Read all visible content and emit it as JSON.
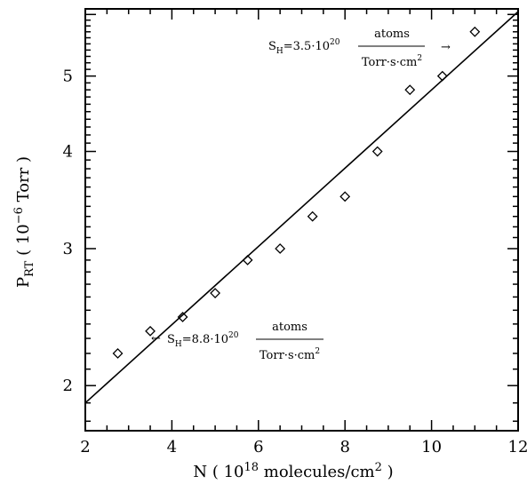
{
  "chart_data": {
    "type": "scatter",
    "xlabel": "N ( 10¹⁸ molecules/cm² )",
    "ylabel": "P_RT ( 10⁻⁶ Torr )",
    "xlim": [
      2,
      12
    ],
    "ylim": [
      1.75,
      6.1
    ],
    "yscale": "log",
    "xticks": [
      2,
      4,
      6,
      8,
      10,
      12
    ],
    "yticks": [
      2,
      3,
      4,
      5
    ],
    "grid": false,
    "series": [
      {
        "type": "scatter",
        "marker": "diamond",
        "x": [
          2.75,
          3.5,
          4.25,
          5.0,
          5.75,
          6.5,
          7.25,
          8.0,
          8.75,
          9.5,
          10.25,
          11.0
        ],
        "y": [
          2.2,
          2.35,
          2.45,
          2.63,
          2.9,
          3.0,
          3.3,
          3.5,
          4.0,
          4.8,
          5.0,
          5.7
        ]
      },
      {
        "type": "line",
        "x": [
          2,
          12
        ],
        "y": [
          1.9,
          6.05
        ]
      }
    ],
    "annotations": [
      {
        "text": "S_H=3.5·10^20 atoms/(Torr·s·cm²)",
        "prefix": "S",
        "sub": "H",
        "mid": "=3.5·10",
        "sup": "20",
        "numerator": "atoms",
        "denominator": "Torr·s·cm",
        "denominator_sup": "2",
        "arrow": "→"
      },
      {
        "text": "S_H=8.8·10^20 atoms/(Torr·s·cm²)",
        "prefix": "S",
        "sub": "H",
        "mid": "=8.8·10",
        "sup": "20",
        "numerator": "atoms",
        "denominator": "Torr·s·cm",
        "denominator_sup": "2",
        "arrow": "←"
      }
    ]
  }
}
